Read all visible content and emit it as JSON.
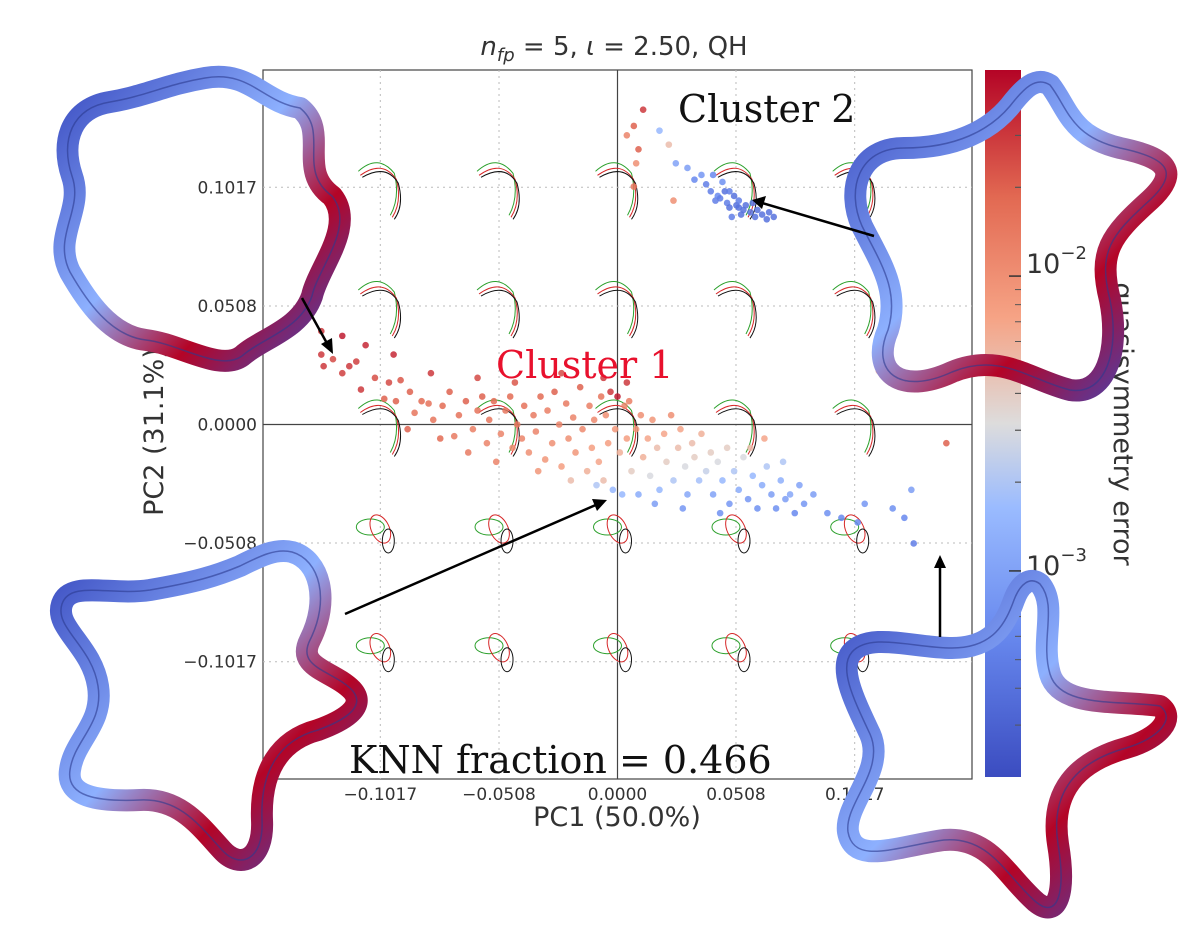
{
  "chart_data": {
    "type": "scatter",
    "title_parts": {
      "var": "n",
      "sub": "fp",
      "eq1": " = 5, ",
      "iota": "ι",
      "eq2": " = 2.50, QH"
    },
    "xlabel": "PC1 (50.0%)",
    "ylabel": "PC2 (31.1%)",
    "xticks": [
      -0.1017,
      -0.0508,
      0.0,
      0.0508,
      0.1017
    ],
    "xtick_labels": [
      "−0.1017",
      "−0.0508",
      "0.0000",
      "0.0508",
      "0.1017"
    ],
    "yticks": [
      -0.1017,
      -0.0508,
      0.0,
      0.0508,
      0.1017
    ],
    "ytick_labels": [
      "−0.1017",
      "−0.0508",
      "0.0000",
      "0.0508",
      "0.1017"
    ],
    "xlim": [
      -0.152,
      0.152
    ],
    "ylim": [
      -0.152,
      0.152
    ],
    "grid": true,
    "colorbar": {
      "label": "quasisymmetry error",
      "scale": "log",
      "range": [
        0.0002,
        0.05
      ],
      "ticks": [
        0.01,
        0.001
      ],
      "tick_labels": [
        {
          "base": "10",
          "exp": "−2"
        },
        {
          "base": "10",
          "exp": "−3"
        }
      ],
      "colormap": "coolwarm",
      "colors": [
        "#3b4cc0",
        "#8db0fe",
        "#dddcdc",
        "#f49a7b",
        "#b40426"
      ]
    },
    "annotations": [
      {
        "text": "Cluster 1",
        "x": -0.01,
        "y": 0.02,
        "color": "#e8112d"
      },
      {
        "text": "Cluster 2",
        "x": 0.026,
        "y": 0.13,
        "color": "#111111"
      },
      {
        "text": "KNN fraction = 0.466",
        "x": -0.115,
        "y": -0.148,
        "color": "#111111"
      }
    ],
    "points": [
      [
        -0.127,
        0.03,
        0.03
      ],
      [
        -0.126,
        0.025,
        0.03
      ],
      [
        -0.127,
        0.04,
        0.03
      ],
      [
        -0.122,
        0.028,
        0.025
      ],
      [
        -0.118,
        0.022,
        0.028
      ],
      [
        -0.115,
        0.025,
        0.03
      ],
      [
        -0.112,
        0.027,
        0.028
      ],
      [
        -0.11,
        0.015,
        0.03
      ],
      [
        -0.104,
        0.02,
        0.024
      ],
      [
        -0.1,
        0.011,
        0.02
      ],
      [
        -0.098,
        0.018,
        0.025
      ],
      [
        -0.095,
        0.01,
        0.02
      ],
      [
        -0.093,
        0.019,
        0.022
      ],
      [
        -0.089,
        0.014,
        0.02
      ],
      [
        -0.087,
        0.005,
        0.015
      ],
      [
        -0.084,
        0.01,
        0.018
      ],
      [
        -0.081,
        0.009,
        0.016
      ],
      [
        -0.079,
        0.002,
        0.015
      ],
      [
        -0.075,
        0.008,
        0.018
      ],
      [
        -0.072,
        0.014,
        0.02
      ],
      [
        -0.07,
        -0.005,
        0.014
      ],
      [
        -0.068,
        0.004,
        0.016
      ],
      [
        -0.065,
        0.01,
        0.02
      ],
      [
        -0.062,
        -0.002,
        0.013
      ],
      [
        -0.06,
        0.006,
        0.016
      ],
      [
        -0.058,
        0.012,
        0.02
      ],
      [
        -0.056,
        -0.008,
        0.012
      ],
      [
        -0.055,
        0.002,
        0.015
      ],
      [
        -0.053,
        0.01,
        0.018
      ],
      [
        -0.05,
        -0.004,
        0.012
      ],
      [
        -0.048,
        0.006,
        0.015
      ],
      [
        -0.046,
        0.012,
        0.018
      ],
      [
        -0.045,
        -0.01,
        0.011
      ],
      [
        -0.043,
        0.0,
        0.014
      ],
      [
        -0.041,
        -0.006,
        0.012
      ],
      [
        -0.04,
        0.008,
        0.016
      ],
      [
        -0.038,
        -0.012,
        0.01
      ],
      [
        -0.036,
        0.004,
        0.014
      ],
      [
        -0.035,
        -0.003,
        0.012
      ],
      [
        -0.033,
        0.012,
        0.018
      ],
      [
        -0.031,
        -0.015,
        0.009
      ],
      [
        -0.03,
        0.006,
        0.013
      ],
      [
        -0.028,
        -0.008,
        0.01
      ],
      [
        -0.027,
        0.014,
        0.02
      ],
      [
        -0.025,
        0.0,
        0.012
      ],
      [
        -0.024,
        -0.018,
        0.008
      ],
      [
        -0.022,
        0.009,
        0.014
      ],
      [
        -0.021,
        -0.006,
        0.01
      ],
      [
        -0.019,
        0.003,
        0.012
      ],
      [
        -0.018,
        -0.012,
        0.009
      ],
      [
        -0.016,
        0.016,
        0.02
      ],
      [
        -0.015,
        -0.002,
        0.011
      ],
      [
        -0.013,
        -0.02,
        0.006
      ],
      [
        -0.012,
        0.008,
        0.013
      ],
      [
        -0.011,
        -0.01,
        0.008
      ],
      [
        -0.01,
        0.002,
        0.011
      ],
      [
        -0.008,
        -0.016,
        0.007
      ],
      [
        -0.007,
        0.012,
        0.015
      ],
      [
        -0.006,
        -0.024,
        0.005
      ],
      [
        -0.005,
        0.004,
        0.01
      ],
      [
        -0.004,
        -0.008,
        0.008
      ],
      [
        -0.003,
        0.014,
        0.03
      ],
      [
        -0.002,
        -0.028,
        0.0015
      ],
      [
        -0.001,
        -0.002,
        0.009
      ],
      [
        0.0,
        0.012,
        0.04
      ],
      [
        0.001,
        -0.012,
        0.006
      ],
      [
        0.002,
        -0.03,
        0.0015
      ],
      [
        0.003,
        0.008,
        0.012
      ],
      [
        0.004,
        -0.006,
        0.008
      ],
      [
        0.005,
        0.01,
        0.013
      ],
      [
        0.006,
        -0.02,
        0.004
      ],
      [
        0.008,
        -0.002,
        0.009
      ],
      [
        0.009,
        -0.03,
        0.0012
      ],
      [
        0.01,
        0.004,
        0.01
      ],
      [
        0.011,
        -0.014,
        0.006
      ],
      [
        0.013,
        -0.006,
        0.007
      ],
      [
        0.014,
        -0.022,
        0.003
      ],
      [
        0.015,
        0.002,
        0.009
      ],
      [
        0.017,
        -0.01,
        0.005
      ],
      [
        0.018,
        -0.028,
        0.0015
      ],
      [
        0.02,
        -0.004,
        0.007
      ],
      [
        0.021,
        -0.016,
        0.004
      ],
      [
        0.023,
        0.004,
        0.01
      ],
      [
        0.024,
        -0.024,
        0.002
      ],
      [
        0.026,
        -0.01,
        0.005
      ],
      [
        0.027,
        -0.002,
        0.007
      ],
      [
        0.029,
        -0.018,
        0.003
      ],
      [
        0.03,
        -0.03,
        0.0011
      ],
      [
        0.032,
        -0.008,
        0.005
      ],
      [
        0.033,
        -0.014,
        0.004
      ],
      [
        0.035,
        -0.024,
        0.0018
      ],
      [
        0.036,
        -0.004,
        0.006
      ],
      [
        0.038,
        -0.02,
        0.0025
      ],
      [
        0.04,
        -0.012,
        0.004
      ],
      [
        0.041,
        -0.03,
        0.001
      ],
      [
        0.043,
        -0.016,
        0.003
      ],
      [
        0.045,
        -0.024,
        0.0015
      ],
      [
        0.047,
        -0.01,
        0.004
      ],
      [
        0.048,
        -0.034,
        0.0008
      ],
      [
        0.05,
        -0.02,
        0.002
      ],
      [
        0.052,
        -0.028,
        0.0012
      ],
      [
        0.054,
        -0.014,
        0.003
      ],
      [
        0.056,
        -0.032,
        0.0008
      ],
      [
        0.058,
        -0.022,
        0.0015
      ],
      [
        0.06,
        -0.036,
        0.0007
      ],
      [
        0.062,
        -0.026,
        0.0012
      ],
      [
        0.064,
        -0.018,
        0.002
      ],
      [
        0.066,
        -0.03,
        0.0009
      ],
      [
        0.068,
        -0.036,
        0.0007
      ],
      [
        0.07,
        -0.024,
        0.0013
      ],
      [
        0.072,
        -0.032,
        0.0009
      ],
      [
        0.074,
        -0.03,
        0.0011
      ],
      [
        0.076,
        -0.038,
        0.0006
      ],
      [
        0.08,
        -0.034,
        0.0008
      ],
      [
        0.09,
        -0.038,
        0.0007
      ],
      [
        0.096,
        -0.04,
        0.0006
      ],
      [
        0.106,
        -0.034,
        0.0008
      ],
      [
        0.118,
        -0.036,
        0.0007
      ],
      [
        0.123,
        -0.04,
        0.0006
      ],
      [
        0.126,
        -0.028,
        0.0009
      ],
      [
        0.127,
        -0.051,
        0.0005
      ],
      [
        0.141,
        -0.008,
        0.02
      ],
      [
        0.112,
        0.023,
        0.006
      ],
      [
        0.103,
        -0.042,
        0.0006
      ],
      [
        0.011,
        0.135,
        0.03
      ],
      [
        0.007,
        0.128,
        0.02
      ],
      [
        0.004,
        0.124,
        0.012
      ],
      [
        0.009,
        0.118,
        0.02
      ],
      [
        0.018,
        0.126,
        0.0015
      ],
      [
        0.007,
        0.102,
        0.015
      ],
      [
        0.008,
        0.112,
        0.01
      ],
      [
        0.022,
        0.12,
        0.005
      ],
      [
        0.025,
        0.112,
        0.001
      ],
      [
        0.03,
        0.11,
        0.0009
      ],
      [
        0.033,
        0.105,
        0.0006
      ],
      [
        0.036,
        0.107,
        0.0008
      ],
      [
        0.038,
        0.103,
        0.0005
      ],
      [
        0.04,
        0.1,
        0.0005
      ],
      [
        0.042,
        0.096,
        0.0005
      ],
      [
        0.043,
        0.098,
        0.0006
      ],
      [
        0.045,
        0.104,
        0.0007
      ],
      [
        0.046,
        0.1,
        0.0004
      ],
      [
        0.047,
        0.095,
        0.0005
      ],
      [
        0.048,
        0.093,
        0.0004
      ],
      [
        0.05,
        0.098,
        0.0004
      ],
      [
        0.051,
        0.094,
        0.0004
      ],
      [
        0.052,
        0.096,
        0.0005
      ],
      [
        0.053,
        0.09,
        0.0004
      ],
      [
        0.054,
        0.092,
        0.0004
      ],
      [
        0.055,
        0.094,
        0.0004
      ],
      [
        0.057,
        0.091,
        0.0004
      ],
      [
        0.058,
        0.095,
        0.0004
      ],
      [
        0.059,
        0.089,
        0.0004
      ],
      [
        0.06,
        0.092,
        0.0004
      ],
      [
        0.062,
        0.09,
        0.0004
      ],
      [
        0.064,
        0.088,
        0.0004
      ],
      [
        0.048,
        0.1,
        0.0005
      ],
      [
        0.052,
        0.093,
        0.0004
      ],
      [
        0.065,
        0.091,
        0.0004
      ],
      [
        0.067,
        0.089,
        0.0004
      ],
      [
        0.049,
        0.089,
        0.0005
      ],
      [
        0.041,
        0.107,
        0.0006
      ],
      [
        0.044,
        0.097,
        0.0005
      ],
      [
        0.024,
        0.096,
        0.01
      ],
      [
        -0.09,
        -0.002,
        0.02
      ],
      [
        -0.076,
        -0.006,
        0.018
      ],
      [
        -0.064,
        -0.012,
        0.014
      ],
      [
        -0.052,
        -0.016,
        0.012
      ],
      [
        -0.034,
        -0.02,
        0.009
      ],
      [
        -0.02,
        -0.024,
        0.005
      ],
      [
        -0.009,
        -0.026,
        0.002
      ],
      [
        0.016,
        -0.034,
        0.0009
      ],
      [
        0.028,
        -0.036,
        0.0008
      ],
      [
        0.044,
        -0.038,
        0.0007
      ],
      [
        0.057,
        -0.01,
        0.005
      ],
      [
        0.063,
        -0.006,
        0.007
      ],
      [
        0.071,
        -0.016,
        0.002
      ],
      [
        0.078,
        -0.026,
        0.001
      ],
      [
        0.084,
        -0.03,
        0.0009
      ],
      [
        -0.006,
        0.02,
        0.03
      ],
      [
        -0.024,
        0.022,
        0.025
      ],
      [
        -0.044,
        0.018,
        0.022
      ],
      [
        -0.06,
        0.02,
        0.025
      ],
      [
        -0.08,
        0.022,
        0.03
      ],
      [
        -0.096,
        0.03,
        0.035
      ],
      [
        -0.108,
        0.034,
        0.035
      ],
      [
        -0.118,
        0.038,
        0.04
      ],
      [
        0.004,
        0.018,
        0.03
      ]
    ]
  }
}
